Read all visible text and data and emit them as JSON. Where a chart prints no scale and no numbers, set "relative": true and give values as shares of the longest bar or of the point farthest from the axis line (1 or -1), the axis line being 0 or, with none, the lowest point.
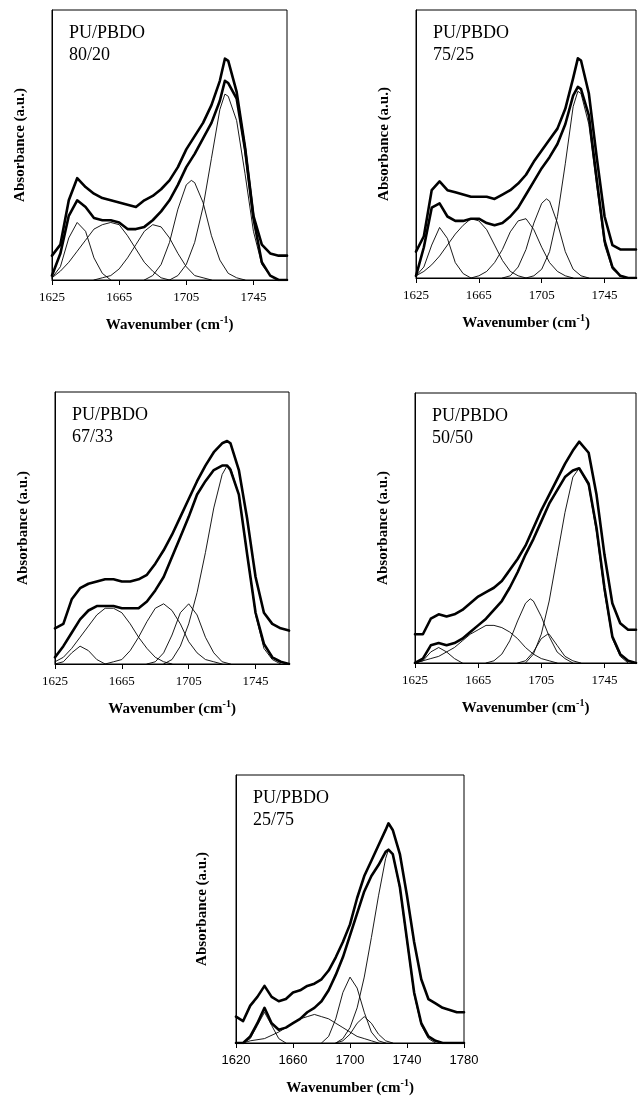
{
  "chart_data": [
    {
      "type": "line",
      "title": "PU/PBDO",
      "subtitle": "80/20",
      "xlabel": "Wavenumber (cm$^{-1}$)",
      "ylabel": "Absorbance (a.u.)",
      "relative": true,
      "xlim": [
        1625,
        1765
      ],
      "xticks": [
        1625,
        1665,
        1705,
        1745
      ],
      "grid": false,
      "marker": "none",
      "series": [
        {
          "color": "#000000",
          "x": [
            1625,
            1630,
            1635,
            1640,
            1645,
            1650,
            1655,
            1660,
            1665,
            1670,
            1675,
            1680,
            1685,
            1690,
            1695,
            1700,
            1705,
            1710,
            1715,
            1720,
            1725,
            1728,
            1730,
            1735,
            1740,
            1745,
            1750,
            1755,
            1760,
            1765
          ],
          "values": [
            0.11,
            0.16,
            0.36,
            0.46,
            0.42,
            0.39,
            0.37,
            0.36,
            0.35,
            0.34,
            0.33,
            0.36,
            0.38,
            0.41,
            0.45,
            0.51,
            0.59,
            0.65,
            0.71,
            0.79,
            0.9,
            1.0,
            0.99,
            0.85,
            0.6,
            0.29,
            0.16,
            0.12,
            0.11,
            0.11
          ]
        },
        {
          "color": "#000000",
          "x": [
            1625,
            1630,
            1635,
            1640,
            1645,
            1650,
            1655,
            1660,
            1665,
            1670,
            1675,
            1680,
            1685,
            1690,
            1695,
            1700,
            1705,
            1710,
            1715,
            1720,
            1725,
            1728,
            1730,
            1735,
            1740,
            1745,
            1750,
            1755,
            1760,
            1765
          ],
          "values": [
            0.02,
            0.12,
            0.29,
            0.36,
            0.33,
            0.28,
            0.27,
            0.27,
            0.26,
            0.23,
            0.23,
            0.24,
            0.27,
            0.31,
            0.36,
            0.43,
            0.51,
            0.57,
            0.64,
            0.71,
            0.81,
            0.9,
            0.89,
            0.82,
            0.59,
            0.28,
            0.08,
            0.02,
            0,
            0
          ]
        },
        {
          "color": "#000000",
          "x": [
            1625,
            1630,
            1635,
            1640,
            1645,
            1650,
            1655,
            1660
          ],
          "values": [
            0.01,
            0.06,
            0.19,
            0.26,
            0.22,
            0.1,
            0.03,
            0
          ]
        },
        {
          "color": "#000000",
          "x": [
            1625,
            1630,
            1635,
            1640,
            1645,
            1650,
            1655,
            1660,
            1665,
            1670,
            1675,
            1680,
            1685,
            1690,
            1695
          ],
          "values": [
            0.01,
            0.04,
            0.08,
            0.13,
            0.18,
            0.23,
            0.25,
            0.26,
            0.25,
            0.2,
            0.14,
            0.08,
            0.04,
            0.01,
            0
          ]
        },
        {
          "color": "#000000",
          "x": [
            1650,
            1655,
            1660,
            1665,
            1670,
            1675,
            1680,
            1685,
            1690,
            1695,
            1700,
            1705,
            1710,
            1715,
            1720
          ],
          "values": [
            0,
            0.01,
            0.02,
            0.05,
            0.1,
            0.16,
            0.22,
            0.25,
            0.24,
            0.19,
            0.12,
            0.06,
            0.02,
            0.01,
            0
          ]
        },
        {
          "color": "#000000",
          "x": [
            1680,
            1685,
            1690,
            1695,
            1700,
            1705,
            1708,
            1710,
            1715,
            1720,
            1725,
            1730,
            1735,
            1740
          ],
          "values": [
            0,
            0.02,
            0.07,
            0.17,
            0.32,
            0.43,
            0.45,
            0.44,
            0.35,
            0.2,
            0.09,
            0.03,
            0.01,
            0
          ]
        },
        {
          "color": "#000000",
          "x": [
            1695,
            1700,
            1705,
            1710,
            1715,
            1720,
            1725,
            1728,
            1730,
            1735,
            1740,
            1745,
            1750,
            1755,
            1760
          ],
          "values": [
            0,
            0.02,
            0.07,
            0.17,
            0.33,
            0.55,
            0.77,
            0.84,
            0.83,
            0.72,
            0.48,
            0.22,
            0.07,
            0.02,
            0
          ]
        }
      ]
    },
    {
      "type": "line",
      "title": "PU/PBDO",
      "subtitle": "75/25",
      "xlabel": "Wavenumber (cm$^{-1}$)",
      "ylabel": "Absorbance (a.u.)",
      "relative": true,
      "xlim": [
        1625,
        1765
      ],
      "xticks": [
        1625,
        1665,
        1705,
        1745
      ],
      "grid": false,
      "marker": "none",
      "series": [
        {
          "color": "#000000",
          "x": [
            1625,
            1630,
            1635,
            1640,
            1645,
            1650,
            1655,
            1660,
            1665,
            1670,
            1675,
            1680,
            1685,
            1690,
            1695,
            1700,
            1705,
            1710,
            1715,
            1720,
            1725,
            1728,
            1730,
            1735,
            1740,
            1745,
            1750,
            1755,
            1760,
            1765
          ],
          "values": [
            0.12,
            0.19,
            0.4,
            0.44,
            0.4,
            0.39,
            0.38,
            0.37,
            0.37,
            0.37,
            0.36,
            0.38,
            0.4,
            0.43,
            0.47,
            0.53,
            0.58,
            0.63,
            0.68,
            0.77,
            0.91,
            1.0,
            0.99,
            0.84,
            0.55,
            0.28,
            0.15,
            0.13,
            0.13,
            0.13
          ]
        },
        {
          "color": "#000000",
          "x": [
            1625,
            1630,
            1635,
            1640,
            1645,
            1650,
            1655,
            1660,
            1665,
            1670,
            1675,
            1680,
            1685,
            1690,
            1695,
            1700,
            1705,
            1710,
            1715,
            1720,
            1725,
            1728,
            1730,
            1735,
            1740,
            1745,
            1750,
            1755,
            1760,
            1765
          ],
          "values": [
            0.01,
            0.14,
            0.32,
            0.34,
            0.28,
            0.26,
            0.26,
            0.27,
            0.27,
            0.25,
            0.24,
            0.25,
            0.28,
            0.32,
            0.38,
            0.44,
            0.5,
            0.55,
            0.61,
            0.7,
            0.83,
            0.87,
            0.86,
            0.74,
            0.45,
            0.17,
            0.05,
            0.01,
            0,
            0
          ]
        },
        {
          "color": "#000000",
          "x": [
            1625,
            1630,
            1635,
            1640,
            1645,
            1650,
            1655,
            1660
          ],
          "values": [
            0.01,
            0.05,
            0.15,
            0.23,
            0.18,
            0.07,
            0.02,
            0
          ]
        },
        {
          "color": "#000000",
          "x": [
            1625,
            1630,
            1635,
            1640,
            1645,
            1650,
            1655,
            1660,
            1665,
            1670,
            1675,
            1680,
            1685,
            1690,
            1695
          ],
          "values": [
            0.01,
            0.03,
            0.06,
            0.1,
            0.15,
            0.2,
            0.24,
            0.27,
            0.26,
            0.22,
            0.15,
            0.08,
            0.03,
            0.01,
            0
          ]
        },
        {
          "color": "#000000",
          "x": [
            1660,
            1665,
            1670,
            1675,
            1680,
            1685,
            1690,
            1695,
            1700,
            1705,
            1710,
            1715,
            1720,
            1725
          ],
          "values": [
            0,
            0.01,
            0.03,
            0.07,
            0.13,
            0.21,
            0.26,
            0.27,
            0.22,
            0.14,
            0.07,
            0.03,
            0.01,
            0
          ]
        },
        {
          "color": "#000000",
          "x": [
            1680,
            1685,
            1690,
            1695,
            1700,
            1705,
            1708,
            1710,
            1715,
            1720,
            1725,
            1730,
            1735
          ],
          "values": [
            0,
            0.01,
            0.05,
            0.13,
            0.25,
            0.34,
            0.36,
            0.35,
            0.25,
            0.12,
            0.04,
            0.01,
            0
          ]
        },
        {
          "color": "#000000",
          "x": [
            1695,
            1700,
            1705,
            1710,
            1715,
            1720,
            1725,
            1728,
            1730,
            1735,
            1740,
            1745,
            1750,
            1755,
            1760
          ],
          "values": [
            0,
            0.01,
            0.04,
            0.12,
            0.28,
            0.52,
            0.78,
            0.85,
            0.84,
            0.7,
            0.42,
            0.15,
            0.04,
            0.01,
            0
          ]
        }
      ]
    },
    {
      "type": "line",
      "title": "PU/PBDO",
      "subtitle": "67/33",
      "xlabel": "Wavenumber (cm$^{-1}$)",
      "ylabel": "Absorbance (a.u.)",
      "relative": true,
      "xlim": [
        1625,
        1765
      ],
      "xticks": [
        1625,
        1665,
        1705,
        1745
      ],
      "grid": false,
      "marker": "none",
      "series": [
        {
          "color": "#000000",
          "x": [
            1625,
            1630,
            1635,
            1640,
            1645,
            1650,
            1655,
            1660,
            1665,
            1670,
            1675,
            1680,
            1685,
            1690,
            1695,
            1700,
            1705,
            1710,
            1715,
            1720,
            1725,
            1728,
            1730,
            1735,
            1740,
            1745,
            1750,
            1755,
            1760,
            1765
          ],
          "values": [
            0.16,
            0.18,
            0.29,
            0.34,
            0.36,
            0.37,
            0.38,
            0.38,
            0.37,
            0.37,
            0.38,
            0.4,
            0.45,
            0.51,
            0.58,
            0.66,
            0.74,
            0.82,
            0.89,
            0.95,
            0.99,
            1.0,
            0.99,
            0.87,
            0.65,
            0.39,
            0.23,
            0.18,
            0.16,
            0.15
          ]
        },
        {
          "color": "#000000",
          "x": [
            1625,
            1630,
            1635,
            1640,
            1645,
            1650,
            1655,
            1660,
            1665,
            1670,
            1675,
            1680,
            1685,
            1690,
            1695,
            1700,
            1705,
            1710,
            1715,
            1720,
            1725,
            1728,
            1730,
            1735,
            1740,
            1745,
            1750,
            1755,
            1760,
            1765
          ],
          "values": [
            0.03,
            0.08,
            0.14,
            0.2,
            0.24,
            0.26,
            0.26,
            0.26,
            0.25,
            0.25,
            0.25,
            0.28,
            0.33,
            0.39,
            0.48,
            0.57,
            0.66,
            0.76,
            0.82,
            0.87,
            0.89,
            0.89,
            0.87,
            0.76,
            0.49,
            0.23,
            0.09,
            0.03,
            0.01,
            0
          ]
        },
        {
          "color": "#000000",
          "x": [
            1625,
            1630,
            1635,
            1640,
            1645,
            1650,
            1655
          ],
          "values": [
            0,
            0.01,
            0.05,
            0.08,
            0.06,
            0.02,
            0
          ]
        },
        {
          "color": "#000000",
          "x": [
            1625,
            1630,
            1635,
            1640,
            1645,
            1650,
            1655,
            1660,
            1665,
            1670,
            1675,
            1680,
            1685,
            1690,
            1695
          ],
          "values": [
            0.01,
            0.03,
            0.07,
            0.12,
            0.17,
            0.22,
            0.25,
            0.25,
            0.23,
            0.18,
            0.12,
            0.07,
            0.03,
            0.01,
            0
          ]
        },
        {
          "color": "#000000",
          "x": [
            1655,
            1660,
            1665,
            1670,
            1675,
            1680,
            1685,
            1690,
            1695,
            1700,
            1705,
            1710,
            1715,
            1720,
            1725
          ],
          "values": [
            0,
            0.01,
            0.02,
            0.06,
            0.12,
            0.19,
            0.25,
            0.27,
            0.24,
            0.18,
            0.1,
            0.05,
            0.02,
            0.01,
            0
          ]
        },
        {
          "color": "#000000",
          "x": [
            1680,
            1685,
            1690,
            1695,
            1700,
            1705,
            1710,
            1715,
            1720,
            1725,
            1730
          ],
          "values": [
            0,
            0.01,
            0.05,
            0.13,
            0.23,
            0.27,
            0.22,
            0.12,
            0.05,
            0.01,
            0
          ]
        },
        {
          "color": "#000000",
          "x": [
            1690,
            1695,
            1700,
            1705,
            1710,
            1715,
            1720,
            1725,
            1728,
            1730,
            1735,
            1740,
            1745,
            1750,
            1755,
            1760
          ],
          "values": [
            0,
            0.02,
            0.08,
            0.18,
            0.32,
            0.5,
            0.7,
            0.85,
            0.89,
            0.88,
            0.76,
            0.49,
            0.22,
            0.07,
            0.02,
            0
          ]
        }
      ]
    },
    {
      "type": "line",
      "title": "PU/PBDO",
      "subtitle": "50/50",
      "xlabel": "Wavenumber (cm$^{-1}$)",
      "ylabel": "Absorbance (a.u.)",
      "relative": true,
      "xlim": [
        1625,
        1765
      ],
      "xticks": [
        1625,
        1665,
        1705,
        1745
      ],
      "grid": false,
      "marker": "none",
      "series": [
        {
          "color": "#000000",
          "x": [
            1625,
            1630,
            1635,
            1640,
            1645,
            1650,
            1655,
            1660,
            1665,
            1670,
            1675,
            1680,
            1685,
            1690,
            1695,
            1700,
            1705,
            1710,
            1715,
            1720,
            1725,
            1729,
            1735,
            1740,
            1745,
            1750,
            1755,
            1760,
            1765
          ],
          "values": [
            0.13,
            0.13,
            0.2,
            0.22,
            0.21,
            0.22,
            0.24,
            0.27,
            0.3,
            0.32,
            0.34,
            0.37,
            0.42,
            0.47,
            0.53,
            0.61,
            0.69,
            0.76,
            0.83,
            0.9,
            0.96,
            1.0,
            0.95,
            0.76,
            0.49,
            0.27,
            0.18,
            0.15,
            0.15
          ]
        },
        {
          "color": "#000000",
          "x": [
            1625,
            1630,
            1635,
            1640,
            1645,
            1650,
            1655,
            1660,
            1665,
            1670,
            1675,
            1680,
            1685,
            1690,
            1695,
            1700,
            1705,
            1710,
            1715,
            1720,
            1725,
            1729,
            1735,
            1740,
            1745,
            1750,
            1755,
            1760,
            1765
          ],
          "values": [
            0,
            0.02,
            0.08,
            0.09,
            0.08,
            0.09,
            0.11,
            0.14,
            0.17,
            0.2,
            0.24,
            0.28,
            0.34,
            0.41,
            0.49,
            0.56,
            0.64,
            0.72,
            0.78,
            0.84,
            0.87,
            0.88,
            0.81,
            0.61,
            0.34,
            0.12,
            0.04,
            0.01,
            0
          ]
        },
        {
          "color": "#000000",
          "x": [
            1625,
            1630,
            1635,
            1640,
            1645,
            1650,
            1655
          ],
          "values": [
            0,
            0.01,
            0.05,
            0.07,
            0.05,
            0.02,
            0
          ]
        },
        {
          "color": "#000000",
          "x": [
            1625,
            1630,
            1635,
            1640,
            1645,
            1650,
            1655,
            1660,
            1665,
            1670,
            1675,
            1680,
            1685,
            1690,
            1695,
            1700,
            1705,
            1710,
            1715
          ],
          "values": [
            0,
            0.01,
            0.02,
            0.03,
            0.05,
            0.07,
            0.1,
            0.13,
            0.15,
            0.17,
            0.17,
            0.16,
            0.14,
            0.11,
            0.07,
            0.04,
            0.02,
            0.01,
            0
          ]
        },
        {
          "color": "#000000",
          "x": [
            1670,
            1675,
            1680,
            1685,
            1690,
            1695,
            1698,
            1700,
            1705,
            1710,
            1715,
            1720,
            1725
          ],
          "values": [
            0,
            0.01,
            0.04,
            0.1,
            0.19,
            0.27,
            0.29,
            0.28,
            0.21,
            0.12,
            0.05,
            0.02,
            0
          ]
        },
        {
          "color": "#000000",
          "x": [
            1690,
            1695,
            1700,
            1705,
            1709,
            1710,
            1715,
            1720,
            1725,
            1730
          ],
          "values": [
            0,
            0.01,
            0.05,
            0.11,
            0.13,
            0.13,
            0.08,
            0.03,
            0.01,
            0
          ]
        },
        {
          "color": "#000000",
          "x": [
            1695,
            1700,
            1705,
            1710,
            1715,
            1720,
            1725,
            1729,
            1735,
            1740,
            1745,
            1750,
            1755,
            1760
          ],
          "values": [
            0,
            0.04,
            0.13,
            0.28,
            0.48,
            0.68,
            0.84,
            0.88,
            0.8,
            0.59,
            0.32,
            0.11,
            0.03,
            0
          ]
        }
      ]
    },
    {
      "type": "line",
      "title": "PU/PBDO",
      "subtitle": "25/75",
      "xlabel": "Wavenumber (cm$^{-1}$)",
      "ylabel": "Absorbance (a.u.)",
      "relative": true,
      "xlim": [
        1620,
        1780
      ],
      "xticks": [
        1620,
        1660,
        1700,
        1740,
        1780
      ],
      "grid": false,
      "marker": "none",
      "series": [
        {
          "color": "#000000",
          "x": [
            1620,
            1625,
            1630,
            1635,
            1640,
            1645,
            1650,
            1655,
            1660,
            1665,
            1670,
            1675,
            1680,
            1685,
            1690,
            1695,
            1700,
            1705,
            1710,
            1715,
            1720,
            1725,
            1727,
            1730,
            1735,
            1740,
            1745,
            1750,
            1755,
            1760,
            1765,
            1770,
            1775,
            1780
          ],
          "values": [
            0.12,
            0.1,
            0.17,
            0.21,
            0.26,
            0.21,
            0.19,
            0.2,
            0.23,
            0.24,
            0.26,
            0.27,
            0.29,
            0.33,
            0.39,
            0.46,
            0.54,
            0.66,
            0.76,
            0.83,
            0.9,
            0.97,
            1.0,
            0.97,
            0.86,
            0.67,
            0.46,
            0.29,
            0.2,
            0.18,
            0.16,
            0.15,
            0.14,
            0.14
          ]
        },
        {
          "color": "#000000",
          "x": [
            1620,
            1625,
            1630,
            1635,
            1640,
            1645,
            1650,
            1655,
            1660,
            1665,
            1670,
            1675,
            1680,
            1685,
            1690,
            1695,
            1700,
            1705,
            1710,
            1715,
            1720,
            1725,
            1727,
            1730,
            1735,
            1740,
            1745,
            1750,
            1755,
            1760,
            1765,
            1770,
            1775,
            1780
          ],
          "values": [
            0,
            0,
            0.03,
            0.09,
            0.16,
            0.09,
            0.06,
            0.07,
            0.09,
            0.11,
            0.14,
            0.16,
            0.19,
            0.24,
            0.31,
            0.39,
            0.49,
            0.59,
            0.69,
            0.76,
            0.81,
            0.87,
            0.88,
            0.86,
            0.71,
            0.47,
            0.23,
            0.09,
            0.03,
            0.01,
            0,
            0,
            0,
            0
          ]
        },
        {
          "color": "#000000",
          "x": [
            1625,
            1630,
            1635,
            1640,
            1645,
            1650,
            1655
          ],
          "values": [
            0,
            0.02,
            0.08,
            0.14,
            0.08,
            0.02,
            0
          ]
        },
        {
          "color": "#000000",
          "x": [
            1625,
            1630,
            1640,
            1650,
            1655,
            1660,
            1665,
            1670,
            1675,
            1680,
            1685,
            1690,
            1695,
            1700,
            1705,
            1710,
            1715,
            1720
          ],
          "values": [
            0,
            0.01,
            0.02,
            0.05,
            0.07,
            0.09,
            0.11,
            0.12,
            0.13,
            0.12,
            0.11,
            0.09,
            0.07,
            0.05,
            0.03,
            0.02,
            0.01,
            0
          ]
        },
        {
          "color": "#000000",
          "x": [
            1680,
            1685,
            1690,
            1695,
            1700,
            1705,
            1710,
            1715,
            1720,
            1725
          ],
          "values": [
            0,
            0.03,
            0.11,
            0.23,
            0.3,
            0.25,
            0.14,
            0.05,
            0.01,
            0
          ]
        },
        {
          "color": "#000000",
          "x": [
            1690,
            1695,
            1700,
            1705,
            1710,
            1715,
            1720,
            1725,
            1730
          ],
          "values": [
            0,
            0.01,
            0.04,
            0.09,
            0.12,
            0.09,
            0.04,
            0.01,
            0
          ]
        },
        {
          "color": "#000000",
          "x": [
            1690,
            1695,
            1700,
            1705,
            1710,
            1715,
            1720,
            1725,
            1727,
            1730,
            1735,
            1740,
            1745,
            1750,
            1755,
            1760
          ],
          "values": [
            0,
            0.02,
            0.07,
            0.16,
            0.3,
            0.48,
            0.67,
            0.84,
            0.88,
            0.86,
            0.7,
            0.46,
            0.22,
            0.08,
            0.02,
            0
          ]
        }
      ]
    }
  ]
}
